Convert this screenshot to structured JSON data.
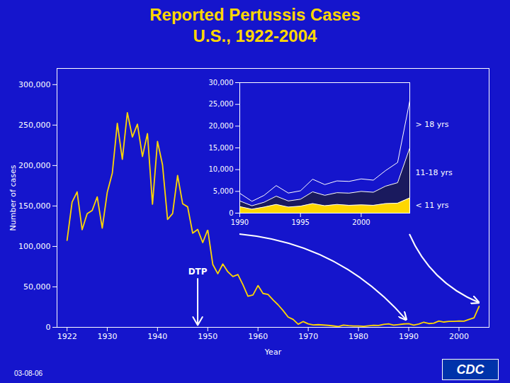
{
  "chart_data": [
    {
      "type": "line",
      "title": "Reported Pertussis Cases",
      "subtitle": "U.S., 1922-2004",
      "xlabel": "Year",
      "ylabel": "Number of cases",
      "x": [
        1922,
        1923,
        1924,
        1925,
        1926,
        1927,
        1928,
        1929,
        1930,
        1931,
        1932,
        1933,
        1934,
        1935,
        1936,
        1937,
        1938,
        1939,
        1940,
        1941,
        1942,
        1943,
        1944,
        1945,
        1946,
        1947,
        1948,
        1949,
        1950,
        1951,
        1952,
        1953,
        1954,
        1955,
        1956,
        1957,
        1958,
        1959,
        1960,
        1961,
        1962,
        1963,
        1964,
        1965,
        1966,
        1967,
        1968,
        1969,
        1970,
        1971,
        1972,
        1973,
        1974,
        1975,
        1976,
        1977,
        1978,
        1979,
        1980,
        1981,
        1982,
        1983,
        1984,
        1985,
        1986,
        1987,
        1988,
        1989,
        1990,
        1991,
        1992,
        1993,
        1994,
        1995,
        1996,
        1997,
        1998,
        1999,
        2000,
        2001,
        2002,
        2003,
        2004
      ],
      "values": [
        107473,
        154908,
        167408,
        120718,
        140426,
        144408,
        161268,
        122558,
        166914,
        190382,
        252068,
        207616,
        265269,
        235218,
        250999,
        211202,
        239520,
        152254,
        229781,
        200779,
        133413,
        140586,
        187718,
        152838,
        148931,
        116392,
        121019,
        104793,
        120718,
        77826,
        66332,
        78258,
        68687,
        62786,
        65280,
        52694,
        38555,
        40005,
        51648,
        41866,
        40569,
        33776,
        27836,
        20715,
        12680,
        9718,
        3829,
        7177,
        4249,
        3036,
        3287,
        2869,
        2402,
        1738,
        1010,
        2822,
        2063,
        1623,
        1730,
        1248,
        1895,
        2463,
        2276,
        3589,
        4195,
        2823,
        3450,
        4157,
        4570,
        2719,
        4083,
        6335,
        4617,
        5137,
        7796,
        6564,
        7405,
        7298,
        7867,
        7580,
        9771,
        11647,
        25827
      ],
      "color": "#FFD700",
      "xlim": [
        1920,
        2006
      ],
      "ylim": [
        0,
        320000
      ],
      "xticks": [
        1922,
        1930,
        1940,
        1950,
        1960,
        1970,
        1980,
        1990,
        2000
      ],
      "yticks": [
        0,
        {
          "value": 50000,
          "label": "50,000"
        },
        {
          "value": 100000,
          "label": "100,000"
        },
        {
          "value": 150000,
          "label": "150,000"
        },
        {
          "value": 200000,
          "label": "200,000"
        },
        {
          "value": 250000,
          "label": "250,000"
        },
        {
          "value": 300000,
          "label": "300,000"
        }
      ],
      "annotations": [
        {
          "text": "DTP",
          "x": 1948,
          "y": 60000
        },
        {
          "text": "03-08-06"
        },
        {
          "text": "CDC"
        }
      ]
    },
    {
      "type": "area",
      "stacked": true,
      "legend": "right",
      "x": [
        1990,
        1991,
        1992,
        1993,
        1994,
        1995,
        1996,
        1997,
        1998,
        1999,
        2000,
        2001,
        2002,
        2003,
        2004
      ],
      "series": [
        {
          "name": "< 11 yrs",
          "color": "#FFD700",
          "values": [
            1500,
            900,
            1400,
            2000,
            1400,
            1600,
            2200,
            1700,
            2000,
            1800,
            1900,
            1800,
            2200,
            2300,
            3500
          ]
        },
        {
          "name": "11-18 yrs",
          "color": "#1a1a5e",
          "values": [
            1300,
            800,
            1100,
            1900,
            1400,
            1600,
            2700,
            2400,
            2700,
            2800,
            3100,
            3000,
            4000,
            4700,
            11500
          ]
        },
        {
          "name": "> 18 yrs",
          "color": "#1515CC",
          "values": [
            1770,
            1019,
            1583,
            2435,
            1817,
            1937,
            2896,
            2464,
            2705,
            2698,
            2867,
            2780,
            3571,
            4647,
            10827
          ]
        }
      ],
      "xlim": [
        1990,
        2004
      ],
      "ylim": [
        0,
        30000
      ],
      "xticks": [
        1990,
        1995,
        2000
      ],
      "yticks": [
        0,
        {
          "value": 5000,
          "label": "5,000"
        },
        {
          "value": 10000,
          "label": "10,000"
        },
        {
          "value": 15000,
          "label": "15,000"
        },
        {
          "value": 20000,
          "label": "20,000"
        },
        {
          "value": 25000,
          "label": "25,000"
        },
        {
          "value": 30000,
          "label": "30,000"
        }
      ]
    }
  ]
}
